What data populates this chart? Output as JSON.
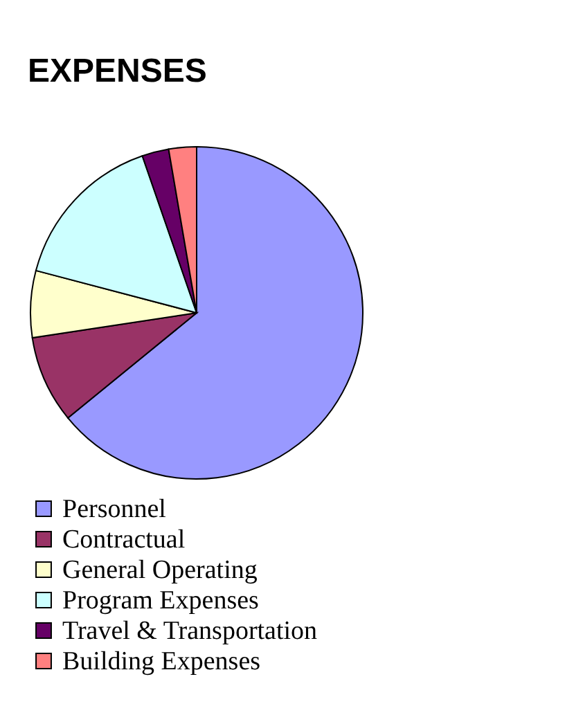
{
  "chart_data": {
    "type": "pie",
    "title": "EXPENSES",
    "categories": [
      "Personnel",
      "Contractual",
      "General Operating",
      "Program Expenses",
      "Travel & Transportation",
      "Building Expenses"
    ],
    "values": [
      64.1,
      8.5,
      6.5,
      15.6,
      2.6,
      2.7
    ],
    "colors": [
      "#9999ff",
      "#993366",
      "#ffffcc",
      "#ccffff",
      "#660066",
      "#ff8080"
    ],
    "legend": "bottom"
  }
}
